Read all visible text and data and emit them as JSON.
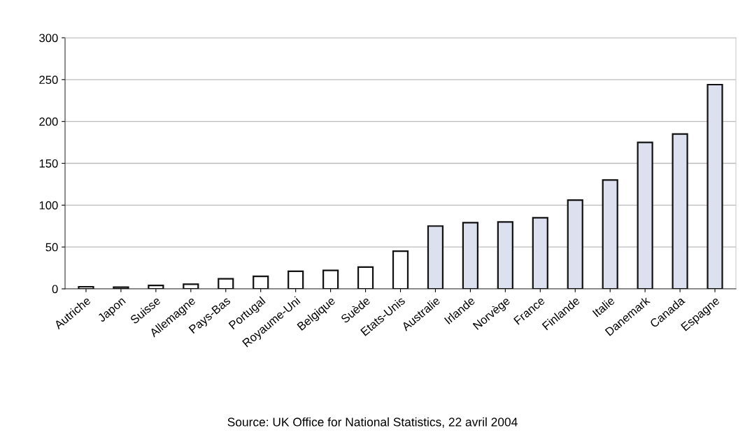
{
  "chart_data": {
    "type": "bar",
    "categories": [
      "Autriche",
      "Japon",
      "Suisse",
      "Allemagne",
      "Pays-Bas",
      "Portugal",
      "Royaume-Uni",
      "Belgique",
      "Suède",
      "Etats-Unis",
      "Australie",
      "Irlande",
      "Norvège",
      "France",
      "Finlande",
      "Italie",
      "Danemark",
      "Canada",
      "Espagne"
    ],
    "values": [
      2.5,
      2,
      4,
      5.5,
      12,
      15,
      21,
      22,
      26,
      45,
      75,
      79,
      80,
      85,
      106,
      130,
      175,
      185,
      244
    ],
    "colors": [
      "#ffffff",
      "#ffffff",
      "#ffffff",
      "#ffffff",
      "#ffffff",
      "#ffffff",
      "#ffffff",
      "#ffffff",
      "#ffffff",
      "#ffffff",
      "#dde0ee",
      "#dde0ee",
      "#dde0ee",
      "#dde0ee",
      "#dde0ee",
      "#dde0ee",
      "#dde0ee",
      "#dde0ee",
      "#dde0ee"
    ],
    "ylim": [
      0,
      300
    ],
    "yticks": [
      0,
      50,
      100,
      150,
      200,
      250,
      300
    ],
    "grid": "y",
    "annotations": [
      "Source: UK Office for National Statistics, 22 avril 2004"
    ]
  }
}
